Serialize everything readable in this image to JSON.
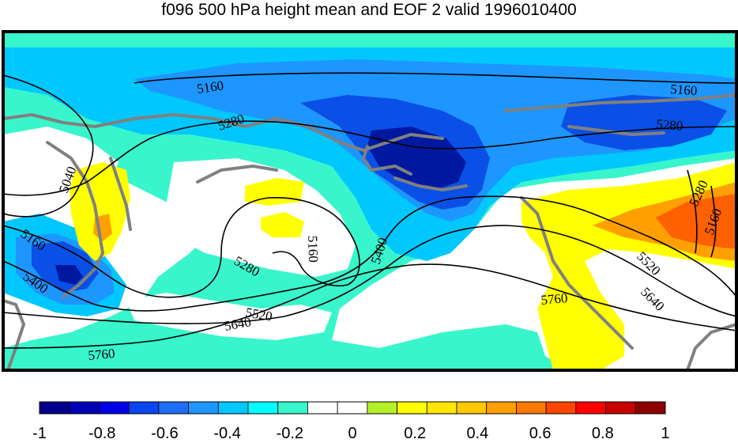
{
  "title": "f096 500 hPa height mean and EOF 2 valid 1996010400",
  "contour_labels": [
    "5160",
    "5280",
    "5040",
    "5160",
    "5400",
    "5280",
    "5160",
    "5400",
    "5520",
    "5640",
    "5760",
    "5160",
    "5280",
    "5280",
    "5160",
    "5520",
    "5640",
    "5760"
  ],
  "colorbar": {
    "colors": [
      "#00008c",
      "#0000b4",
      "#0000e6",
      "#0a46f0",
      "#1e6ef5",
      "#1e96ff",
      "#00c8ff",
      "#00ffff",
      "#38f5cc",
      "#ffffff",
      "#ffffff",
      "#b4f028",
      "#ffff00",
      "#ffe600",
      "#ffc800",
      "#ffa000",
      "#ff7800",
      "#ff4600",
      "#ff0000",
      "#c80000",
      "#8c0000"
    ],
    "tick_labels": [
      "-1",
      "-0.8",
      "-0.6",
      "-0.4",
      "-0.2",
      "0",
      "0.2",
      "0.4",
      "0.6",
      "0.8",
      "1"
    ]
  },
  "palette": {
    "dark_blue": "#0018a0",
    "blue": "#0a50e6",
    "medium_blue": "#1e96ff",
    "light_blue": "#00c8ff",
    "teal": "#38f5cc",
    "yellow": "#ffff00",
    "orange": "#ffa000",
    "dark_orange": "#ff6000",
    "coast": "#808080",
    "contour": "#000000"
  }
}
